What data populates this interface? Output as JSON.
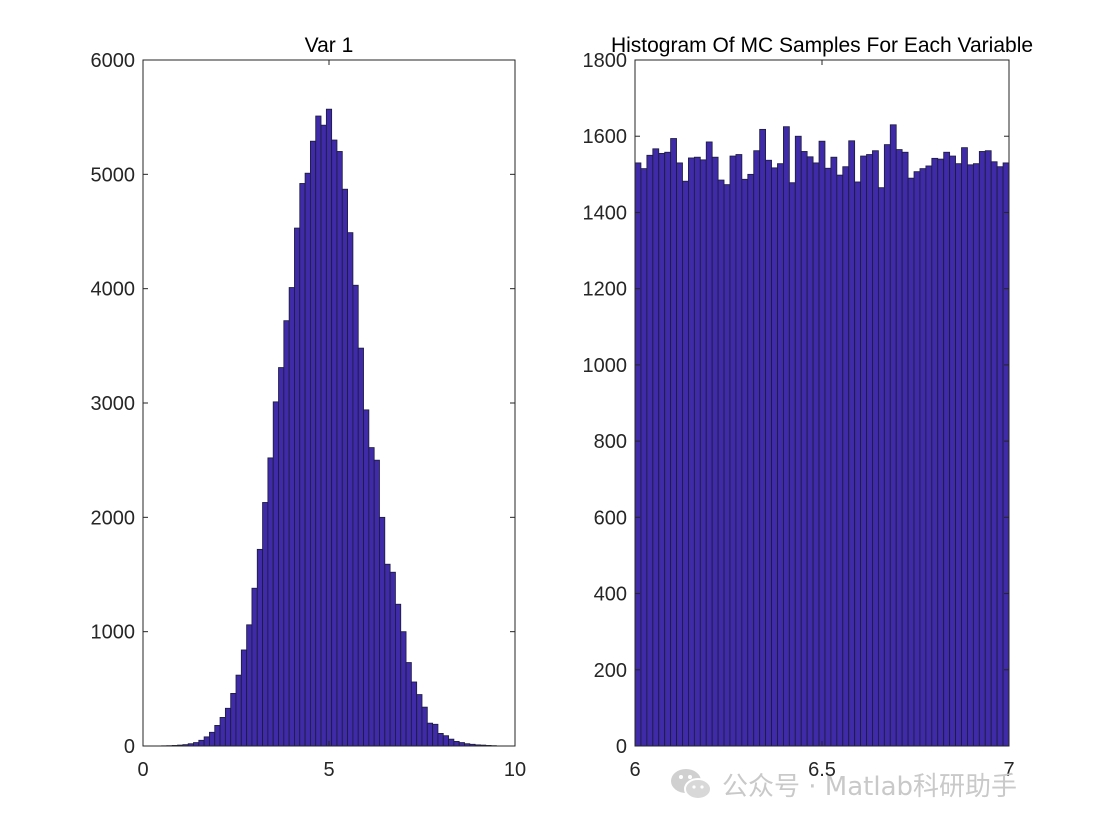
{
  "colors": {
    "bar_fill": "#3f2aa8",
    "bar_edge": "#1b1b3a",
    "axis": "#262626",
    "background": "#ffffff",
    "watermark": "#c9c9c9"
  },
  "chart_data": [
    {
      "type": "bar",
      "title": "Var 1",
      "xlabel": "",
      "ylabel": "",
      "xlim": [
        0,
        10
      ],
      "ylim": [
        0,
        6000
      ],
      "xticks": [
        0,
        5,
        10
      ],
      "yticks": [
        0,
        1000,
        2000,
        3000,
        4000,
        5000,
        6000
      ],
      "grid": false,
      "bin_edges_range": [
        0.5,
        9.5
      ],
      "values": [
        2,
        3,
        5,
        8,
        12,
        20,
        30,
        50,
        80,
        120,
        180,
        250,
        330,
        460,
        620,
        840,
        1060,
        1380,
        1720,
        2130,
        2520,
        3010,
        3310,
        3720,
        4010,
        4530,
        4920,
        5010,
        5290,
        5510,
        5430,
        5570,
        5300,
        5200,
        4870,
        4490,
        4030,
        3480,
        2940,
        2610,
        2500,
        2000,
        1590,
        1520,
        1240,
        1000,
        730,
        560,
        450,
        340,
        200,
        190,
        110,
        90,
        60,
        40,
        30,
        20,
        15,
        10,
        8,
        5,
        3
      ]
    },
    {
      "type": "bar",
      "title": "Histogram Of MC Samples For Each Variable",
      "xlabel": "",
      "ylabel": "",
      "xlim": [
        6,
        7
      ],
      "ylim": [
        0,
        1800
      ],
      "xticks": [
        6,
        6.5,
        7
      ],
      "yticks": [
        0,
        200,
        400,
        600,
        800,
        1000,
        1200,
        1400,
        1600,
        1800
      ],
      "grid": false,
      "bin_edges_range": [
        6,
        7
      ],
      "values": [
        1530,
        1515,
        1550,
        1567,
        1555,
        1558,
        1594,
        1530,
        1482,
        1543,
        1545,
        1538,
        1585,
        1545,
        1485,
        1473,
        1548,
        1552,
        1487,
        1500,
        1562,
        1618,
        1537,
        1517,
        1528,
        1625,
        1478,
        1600,
        1560,
        1546,
        1530,
        1587,
        1516,
        1545,
        1498,
        1520,
        1588,
        1480,
        1548,
        1552,
        1562,
        1465,
        1578,
        1630,
        1565,
        1558,
        1490,
        1507,
        1515,
        1522,
        1542,
        1540,
        1558,
        1548,
        1528,
        1570,
        1525,
        1528,
        1560,
        1562,
        1533,
        1520,
        1530
      ]
    }
  ],
  "watermark": {
    "text": "公众号 · Matlab科研助手",
    "icon": "wechat-icon"
  }
}
